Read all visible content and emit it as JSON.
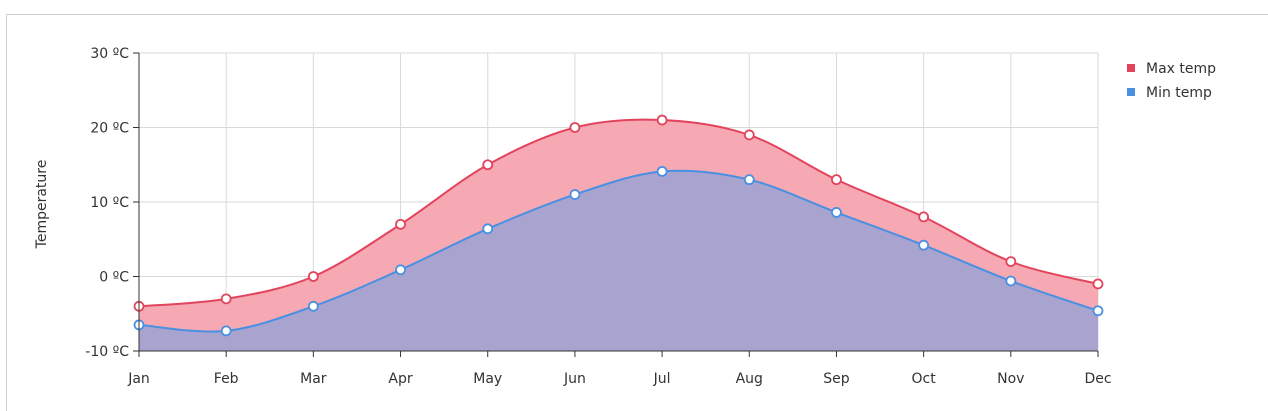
{
  "chart_data": {
    "type": "area",
    "ylabel": "Temperature",
    "ylim": [
      -10,
      30
    ],
    "yticks": [
      -10,
      0,
      10,
      20,
      30
    ],
    "ytick_labels": [
      "-10 ºC",
      "0 ºC",
      "10 ºC",
      "20 ºC",
      "30 ºC"
    ],
    "categories": [
      "Jan",
      "Feb",
      "Mar",
      "Apr",
      "May",
      "Jun",
      "Jul",
      "Aug",
      "Sep",
      "Oct",
      "Nov",
      "Dec"
    ],
    "legend_position": "top-right",
    "grid": true,
    "series": [
      {
        "name": "Max temp",
        "color": "#e2445c",
        "fill": "#f6a8b3",
        "values": [
          -4,
          -3,
          0,
          7,
          15,
          20,
          21,
          19,
          13,
          8,
          2,
          -1
        ]
      },
      {
        "name": "Min temp",
        "color": "#4a90e2",
        "fill": "#a9a3cf",
        "values": [
          -6.5,
          -7.3,
          -4,
          0.9,
          6.4,
          11,
          14.1,
          13,
          8.6,
          4.2,
          -0.6,
          -4.6
        ]
      }
    ]
  }
}
